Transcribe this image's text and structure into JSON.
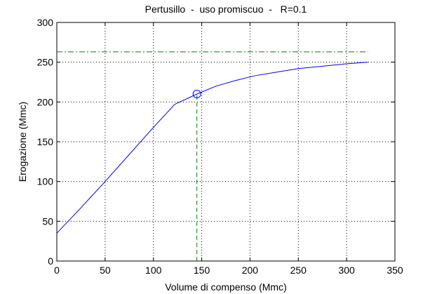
{
  "chart_data": {
    "type": "line",
    "title": "Pertusillo  -  uso promiscuo  -   R=0.1",
    "xlabel": "Volume di compenso (Mmc)",
    "ylabel": "Erogazione (Mmc)",
    "xlim": [
      0,
      350
    ],
    "ylim": [
      0,
      300
    ],
    "xticks": [
      0,
      50,
      100,
      150,
      200,
      250,
      300,
      350
    ],
    "yticks": [
      0,
      50,
      100,
      150,
      200,
      250,
      300
    ],
    "grid": true,
    "series": [
      {
        "color": "#0000ff",
        "x": [
          0,
          25,
          50,
          75,
          100,
          122,
          145,
          165,
          185,
          205,
          230,
          250,
          275,
          300,
          322
        ],
        "values": [
          35,
          67,
          100,
          134,
          168,
          197,
          210,
          220,
          227,
          233,
          238,
          242,
          245,
          248,
          250
        ]
      }
    ],
    "marker": {
      "x": 145,
      "y": 210,
      "color": "#0000ff"
    },
    "reference_lines": [
      {
        "x": [
          0,
          322
        ],
        "y": [
          263,
          263
        ],
        "color": "#008000",
        "dash": "8 3 2 3"
      },
      {
        "x": [
          145,
          145
        ],
        "y": [
          0,
          210
        ],
        "color": "#008000",
        "dash": "6 4"
      }
    ]
  }
}
